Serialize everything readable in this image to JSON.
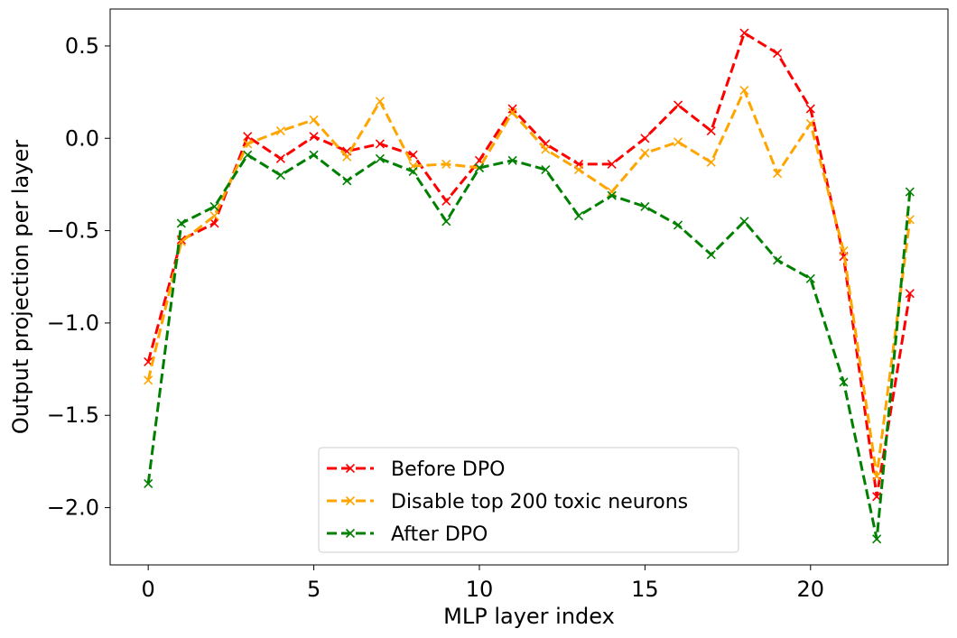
{
  "chart_data": {
    "type": "line",
    "title": "",
    "xlabel": "MLP layer index",
    "ylabel": "Output projection per layer",
    "xlim": [
      -1.15,
      24.15
    ],
    "ylim": [
      -2.31,
      0.7
    ],
    "xticks": [
      0,
      5,
      10,
      15,
      20
    ],
    "yticks": [
      0.5,
      0.0,
      -0.5,
      -1.0,
      -1.5,
      -2.0
    ],
    "xtick_labels": [
      "0",
      "5",
      "10",
      "15",
      "20"
    ],
    "ytick_labels": [
      "0.5",
      "0.0",
      "−0.5",
      "−1.0",
      "−1.5",
      "−2.0"
    ],
    "grid": false,
    "legend_position": "lower-center",
    "x": [
      0,
      1,
      2,
      3,
      4,
      5,
      6,
      7,
      8,
      9,
      10,
      11,
      12,
      13,
      14,
      15,
      16,
      17,
      18,
      19,
      20,
      21,
      22,
      23
    ],
    "series": [
      {
        "name": "Before DPO",
        "color": "#ff0000",
        "values": [
          -1.21,
          -0.55,
          -0.46,
          0.01,
          -0.11,
          0.01,
          -0.07,
          -0.03,
          -0.09,
          -0.34,
          -0.12,
          0.16,
          -0.03,
          -0.14,
          -0.14,
          0.0,
          0.18,
          0.04,
          0.57,
          0.46,
          0.16,
          -0.64,
          -1.94,
          -0.84
        ]
      },
      {
        "name": "Disable top 200 toxic neurons",
        "color": "#ffa500",
        "values": [
          -1.31,
          -0.56,
          -0.42,
          -0.03,
          0.04,
          0.1,
          -0.1,
          0.2,
          -0.15,
          -0.14,
          -0.16,
          0.14,
          -0.06,
          -0.17,
          -0.29,
          -0.08,
          -0.02,
          -0.13,
          0.26,
          -0.19,
          0.08,
          -0.61,
          -1.83,
          -0.44
        ]
      },
      {
        "name": "After DPO",
        "color": "#008000",
        "values": [
          -1.87,
          -0.46,
          -0.37,
          -0.09,
          -0.2,
          -0.09,
          -0.23,
          -0.11,
          -0.18,
          -0.45,
          -0.16,
          -0.12,
          -0.17,
          -0.42,
          -0.31,
          -0.37,
          -0.47,
          -0.63,
          -0.45,
          -0.66,
          -0.76,
          -1.32,
          -2.17,
          -0.29
        ]
      }
    ]
  }
}
